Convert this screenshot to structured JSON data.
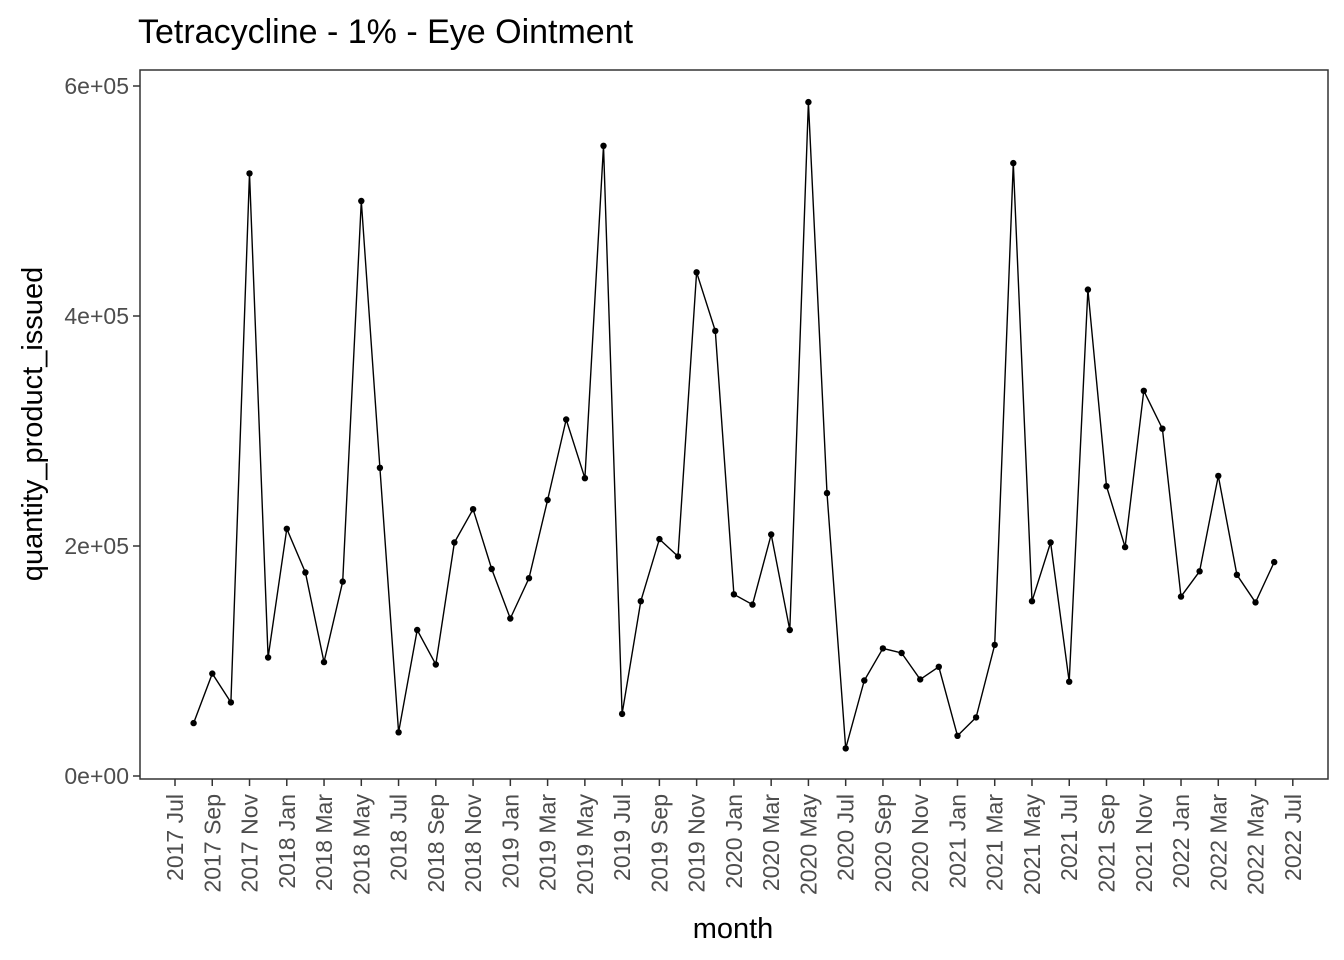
{
  "chart_data": {
    "type": "line",
    "title": "Tetracycline - 1% - Eye Ointment",
    "xlabel": "month",
    "ylabel": "quantity_product_issued",
    "ylim": [
      -1000,
      600000
    ],
    "y_ticks": [
      {
        "value": 0,
        "label": "0e+00"
      },
      {
        "value": 200000,
        "label": "2e+05"
      },
      {
        "value": 400000,
        "label": "4e+05"
      },
      {
        "value": 600000,
        "label": "6e+05"
      }
    ],
    "x_ticks": [
      "2017 Jul",
      "2017 Sep",
      "2017 Nov",
      "2018 Jan",
      "2018 Mar",
      "2018 May",
      "2018 Jul",
      "2018 Sep",
      "2018 Nov",
      "2019 Jan",
      "2019 Mar",
      "2019 May",
      "2019 Jul",
      "2019 Sep",
      "2019 Nov",
      "2020 Jan",
      "2020 Mar",
      "2020 May",
      "2020 Jul",
      "2020 Sep",
      "2020 Nov",
      "2021 Jan",
      "2021 Mar",
      "2021 May",
      "2021 Jul",
      "2021 Sep",
      "2021 Nov",
      "2022 Jan",
      "2022 Mar",
      "2022 May",
      "2022 Jul"
    ],
    "grid": false,
    "series": [
      {
        "color": "#000000",
        "x": [
          "2017 Aug",
          "2017 Sep",
          "2017 Oct",
          "2017 Nov",
          "2017 Dec",
          "2018 Jan",
          "2018 Feb",
          "2018 Mar",
          "2018 Apr",
          "2018 May",
          "2018 Jun",
          "2018 Jul",
          "2018 Aug",
          "2018 Sep",
          "2018 Oct",
          "2018 Nov",
          "2018 Dec",
          "2019 Jan",
          "2019 Feb",
          "2019 Mar",
          "2019 Apr",
          "2019 May",
          "2019 Jun",
          "2019 Jul",
          "2019 Aug",
          "2019 Sep",
          "2019 Oct",
          "2019 Nov",
          "2019 Dec",
          "2020 Jan",
          "2020 Feb",
          "2020 Mar",
          "2020 Apr",
          "2020 May",
          "2020 Jun",
          "2020 Jul",
          "2020 Aug",
          "2020 Sep",
          "2020 Oct",
          "2020 Nov",
          "2020 Dec",
          "2021 Jan",
          "2021 Feb",
          "2021 Mar",
          "2021 Apr",
          "2021 May",
          "2021 Jun",
          "2021 Jul",
          "2021 Aug",
          "2021 Sep",
          "2021 Oct",
          "2021 Nov",
          "2021 Dec",
          "2022 Jan",
          "2022 Feb",
          "2022 Mar",
          "2022 Apr",
          "2022 May",
          "2022 Jun"
        ],
        "values": [
          46000,
          89000,
          64000,
          524000,
          103000,
          215000,
          177000,
          99000,
          169000,
          500000,
          268000,
          38000,
          127000,
          97000,
          203000,
          232000,
          180000,
          137000,
          172000,
          240000,
          310000,
          259000,
          548000,
          54000,
          152000,
          206000,
          191000,
          438000,
          387000,
          158000,
          149000,
          210000,
          127000,
          586000,
          246000,
          24000,
          83000,
          111000,
          107000,
          84000,
          95000,
          35000,
          51000,
          114000,
          533000,
          152000,
          203000,
          82000,
          423000,
          252000,
          199000,
          335000,
          302000,
          156000,
          178000,
          261000,
          175000,
          151000,
          186000
        ]
      }
    ]
  }
}
